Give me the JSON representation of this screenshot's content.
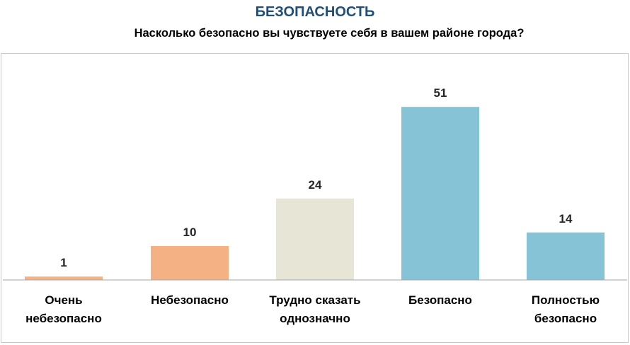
{
  "header": {
    "title": "БЕЗОПАСНОСТЬ",
    "subtitle": "Насколько безопасно вы чувствуете себя в вашем районе города?"
  },
  "chart_data": {
    "type": "bar",
    "categories": [
      [
        "Очень",
        "небезопасно"
      ],
      [
        "Небезопасно"
      ],
      [
        "Трудно сказать",
        "однозначно"
      ],
      [
        "Безопасно"
      ],
      [
        "Полностью",
        "безопасно"
      ]
    ],
    "values": [
      1,
      10,
      24,
      51,
      14
    ],
    "bar_colors": [
      "#f4b183",
      "#f4b183",
      "#e7e6d6",
      "#86c3d6",
      "#86c3d6"
    ],
    "axis_color": "#a6a6a6",
    "ylim": [
      0,
      55
    ],
    "grid": false,
    "legend": "none"
  }
}
